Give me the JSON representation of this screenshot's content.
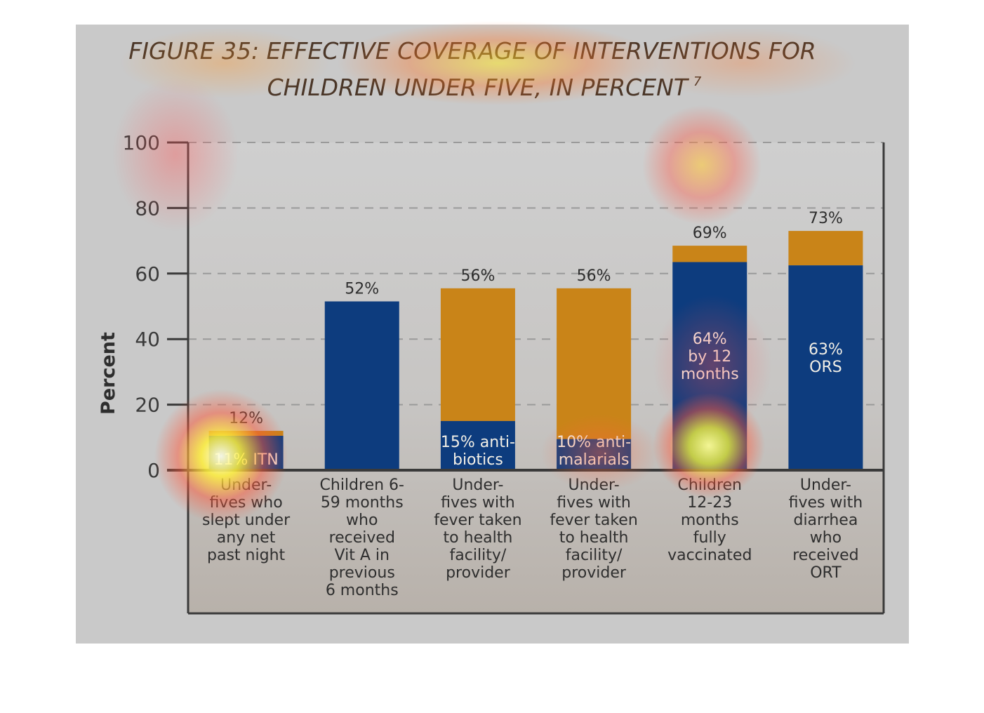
{
  "figure": {
    "title_line1": "FIGURE 35: EFFECTIVE COVERAGE OF INTERVENTIONS FOR",
    "title_line2": "CHILDREN UNDER FIVE, IN PERCENT",
    "title_superscript": "7"
  },
  "colors": {
    "panel": "#c9c9c9",
    "plot_bottom": "#b9b3ad",
    "primary_bar": "#0d3c7e",
    "secondary_bar": "#c98418",
    "title": "#4a3628",
    "axis": "#3a3a3a",
    "text": "#2e2e2e"
  },
  "chart_data": {
    "type": "bar",
    "stacked": true,
    "title": "FIGURE 35: EFFECTIVE COVERAGE OF INTERVENTIONS FOR CHILDREN UNDER FIVE, IN PERCENT",
    "ylabel": "Percent",
    "xlabel": "",
    "ylim": [
      0,
      100
    ],
    "yticks": [
      "0",
      "20",
      "40",
      "60",
      "80",
      "100"
    ],
    "grid": true,
    "categories": [
      [
        "Under-",
        "fives who",
        "slept under",
        "any net",
        "past night"
      ],
      [
        "Children 6-",
        "59 months",
        "who",
        "received",
        "Vit A in",
        "previous",
        "6 months"
      ],
      [
        "Under-",
        "fives with",
        "fever taken",
        "to health",
        "facility/",
        "provider"
      ],
      [
        "Under-",
        "fives with",
        "fever taken",
        "to health",
        "facility/",
        "provider"
      ],
      [
        "Children",
        "12-23",
        "months",
        "fully",
        "vaccinated"
      ],
      [
        "Under-",
        "fives with",
        "diarrhea",
        "who",
        "received",
        "ORT"
      ]
    ],
    "totals": [
      12,
      51.5,
      55.5,
      55.5,
      68.5,
      73
    ],
    "total_labels": [
      "12%",
      "52%",
      "56%",
      "56%",
      "69%",
      "73%"
    ],
    "inner_values": [
      10.5,
      51.5,
      15,
      9.5,
      63.5,
      62.5
    ],
    "inner_labels": [
      [
        "11% ITN"
      ],
      [],
      [
        "15% anti-",
        "biotics"
      ],
      [
        "10% anti-",
        "malarials"
      ],
      [
        "64%",
        "by 12",
        "months"
      ],
      [
        "63%",
        "ORS"
      ]
    ]
  }
}
